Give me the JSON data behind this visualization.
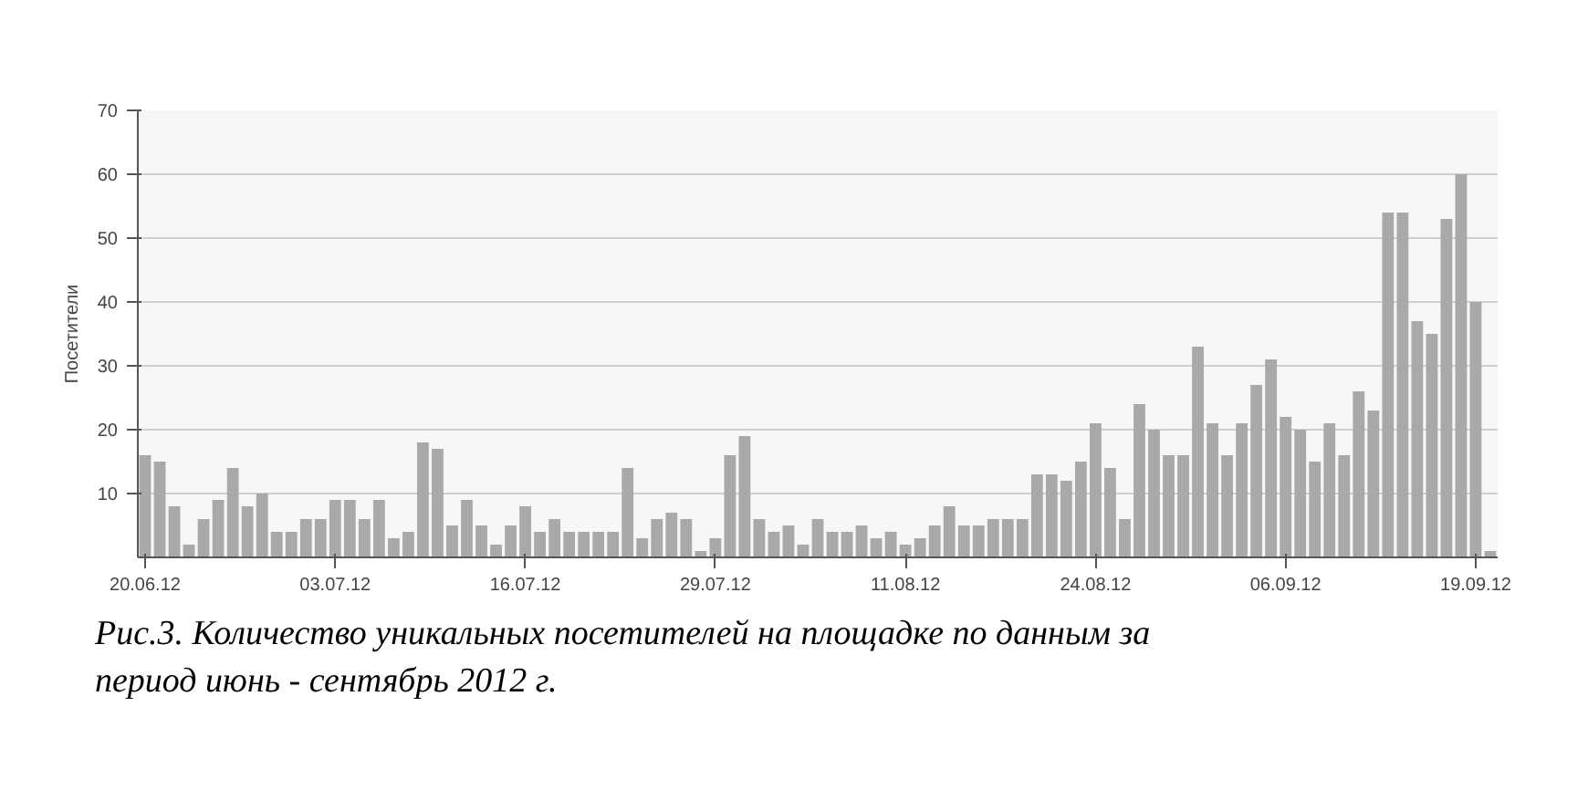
{
  "chart_data": {
    "type": "bar",
    "x": [
      "2012-06-20",
      "2012-06-21",
      "2012-06-22",
      "2012-06-23",
      "2012-06-24",
      "2012-06-25",
      "2012-06-26",
      "2012-06-27",
      "2012-06-28",
      "2012-06-29",
      "2012-06-30",
      "2012-07-01",
      "2012-07-02",
      "2012-07-03",
      "2012-07-04",
      "2012-07-05",
      "2012-07-06",
      "2012-07-07",
      "2012-07-08",
      "2012-07-09",
      "2012-07-10",
      "2012-07-11",
      "2012-07-12",
      "2012-07-13",
      "2012-07-14",
      "2012-07-15",
      "2012-07-16",
      "2012-07-17",
      "2012-07-18",
      "2012-07-19",
      "2012-07-20",
      "2012-07-21",
      "2012-07-22",
      "2012-07-23",
      "2012-07-24",
      "2012-07-25",
      "2012-07-26",
      "2012-07-27",
      "2012-07-28",
      "2012-07-29",
      "2012-07-30",
      "2012-07-31",
      "2012-08-01",
      "2012-08-02",
      "2012-08-03",
      "2012-08-04",
      "2012-08-05",
      "2012-08-06",
      "2012-08-07",
      "2012-08-08",
      "2012-08-09",
      "2012-08-10",
      "2012-08-11",
      "2012-08-12",
      "2012-08-13",
      "2012-08-14",
      "2012-08-15",
      "2012-08-16",
      "2012-08-17",
      "2012-08-18",
      "2012-08-19",
      "2012-08-20",
      "2012-08-21",
      "2012-08-22",
      "2012-08-23",
      "2012-08-24",
      "2012-08-25",
      "2012-08-26",
      "2012-08-27",
      "2012-08-28",
      "2012-08-29",
      "2012-08-30",
      "2012-08-31",
      "2012-09-01",
      "2012-09-02",
      "2012-09-03",
      "2012-09-04",
      "2012-09-05",
      "2012-09-06",
      "2012-09-07",
      "2012-09-08",
      "2012-09-09",
      "2012-09-10",
      "2012-09-11",
      "2012-09-12",
      "2012-09-13",
      "2012-09-14",
      "2012-09-15",
      "2012-09-16",
      "2012-09-17",
      "2012-09-18",
      "2012-09-19",
      "2012-09-20"
    ],
    "values": [
      16,
      15,
      8,
      2,
      6,
      9,
      14,
      8,
      10,
      4,
      4,
      6,
      6,
      9,
      9,
      6,
      9,
      3,
      4,
      18,
      17,
      5,
      9,
      5,
      2,
      5,
      8,
      4,
      6,
      4,
      4,
      4,
      4,
      14,
      3,
      6,
      7,
      6,
      1,
      3,
      16,
      19,
      6,
      4,
      5,
      2,
      6,
      4,
      4,
      5,
      3,
      4,
      2,
      3,
      5,
      8,
      5,
      5,
      6,
      6,
      6,
      13,
      13,
      12,
      15,
      21,
      14,
      6,
      24,
      20,
      16,
      16,
      33,
      21,
      16,
      21,
      27,
      31,
      22,
      20,
      15,
      21,
      16,
      26,
      23,
      54,
      54,
      37,
      35,
      53,
      60,
      40,
      1
    ],
    "color": "#a9a9a9",
    "ylabel": "Посетители",
    "ylim": [
      0,
      70
    ],
    "yticks": [
      10,
      20,
      30,
      40,
      50,
      60,
      70
    ],
    "xlim": [
      "2012-06-19T12:00",
      "2012-09-20T12:00"
    ],
    "xticks": [
      {
        "value": "2012-06-20",
        "label": "20.06.12"
      },
      {
        "value": "2012-07-03",
        "label": "03.07.12"
      },
      {
        "value": "2012-07-16",
        "label": "16.07.12"
      },
      {
        "value": "2012-07-29",
        "label": "29.07.12"
      },
      {
        "value": "2012-08-11",
        "label": "11.08.12"
      },
      {
        "value": "2012-08-24",
        "label": "24.08.12"
      },
      {
        "value": "2012-09-06",
        "label": "06.09.12"
      },
      {
        "value": "2012-09-19",
        "label": "19.09.12"
      }
    ],
    "grid": "y",
    "annotations": [
      "Рис.3. Количество уникальных посетителей на площадке по данным за период июнь - сентябрь 2012 г."
    ]
  }
}
